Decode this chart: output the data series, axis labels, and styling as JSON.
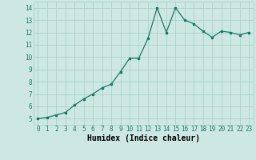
{
  "x": [
    0,
    1,
    2,
    3,
    4,
    5,
    6,
    7,
    8,
    9,
    10,
    11,
    12,
    13,
    14,
    15,
    16,
    17,
    18,
    19,
    20,
    21,
    22,
    23
  ],
  "y": [
    5.0,
    5.1,
    5.3,
    5.5,
    6.1,
    6.6,
    7.0,
    7.5,
    7.8,
    8.8,
    9.9,
    9.9,
    11.5,
    14.0,
    12.0,
    14.0,
    13.0,
    12.7,
    12.1,
    11.6,
    12.1,
    12.0,
    11.8,
    12.0
  ],
  "line_color": "#1a7a6a",
  "marker": "s",
  "marker_size": 1.8,
  "bg_color": "#cde8e2",
  "grid_color": "#a8cec8",
  "xlabel": "Humidex (Indice chaleur)",
  "xlim": [
    -0.5,
    23.5
  ],
  "ylim": [
    4.5,
    14.5
  ],
  "yticks": [
    5,
    6,
    7,
    8,
    9,
    10,
    11,
    12,
    13,
    14
  ],
  "xticks": [
    0,
    1,
    2,
    3,
    4,
    5,
    6,
    7,
    8,
    9,
    10,
    11,
    12,
    13,
    14,
    15,
    16,
    17,
    18,
    19,
    20,
    21,
    22,
    23
  ],
  "xtick_labels": [
    "0",
    "1",
    "2",
    "3",
    "4",
    "5",
    "6",
    "7",
    "8",
    "9",
    "10",
    "11",
    "12",
    "13",
    "14",
    "15",
    "16",
    "17",
    "18",
    "19",
    "20",
    "21",
    "22",
    "23"
  ],
  "tick_fontsize": 5.5,
  "xlabel_fontsize": 7.0,
  "line_width": 0.9
}
